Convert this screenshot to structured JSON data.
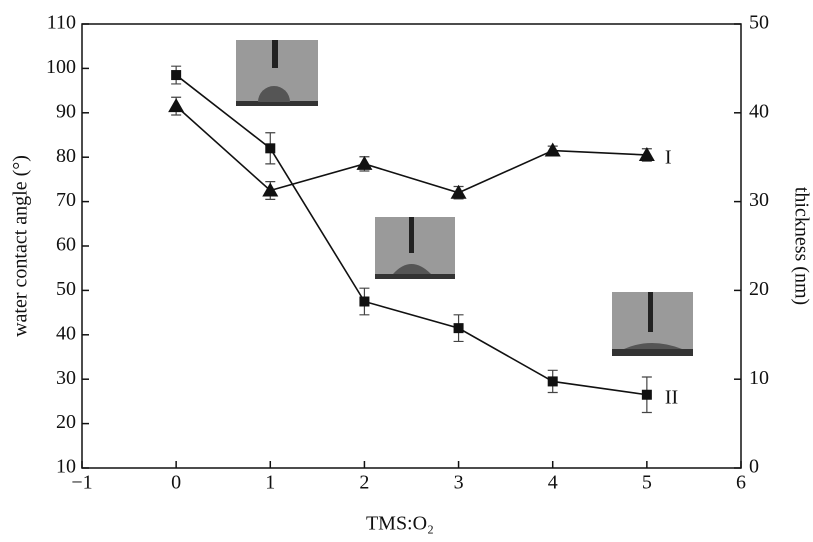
{
  "chart_data": {
    "type": "line",
    "x_label": "TMS:O₂",
    "y_label": "water contact angle (°)",
    "y2_label": "thickness (nm)",
    "x": [
      0,
      1,
      2,
      3,
      4,
      5
    ],
    "xlim": [
      -1,
      6
    ],
    "xticks": [
      {
        "value": -1,
        "label": "−1"
      },
      0,
      1,
      2,
      3,
      4,
      5,
      6
    ],
    "ylim": [
      10,
      110
    ],
    "yticks": [
      10,
      20,
      30,
      40,
      50,
      60,
      70,
      80,
      90,
      100,
      110
    ],
    "y2lim": [
      0,
      50
    ],
    "y2ticks": [
      0,
      10,
      20,
      30,
      40,
      50
    ],
    "series": [
      {
        "name": "I",
        "color": "#111111",
        "marker": "triangle",
        "axis": "y2",
        "values": [
          40.75,
          31.25,
          34.25,
          31,
          35.75,
          35.25
        ],
        "errors": [
          1,
          1,
          0.8,
          0.7,
          0.5,
          0.7
        ]
      },
      {
        "name": "II",
        "color": "#111111",
        "marker": "square",
        "values": [
          98.5,
          82,
          47.5,
          41.5,
          29.5,
          26.5
        ],
        "errors": [
          2,
          3.5,
          3,
          3,
          2.5,
          4
        ]
      }
    ]
  }
}
